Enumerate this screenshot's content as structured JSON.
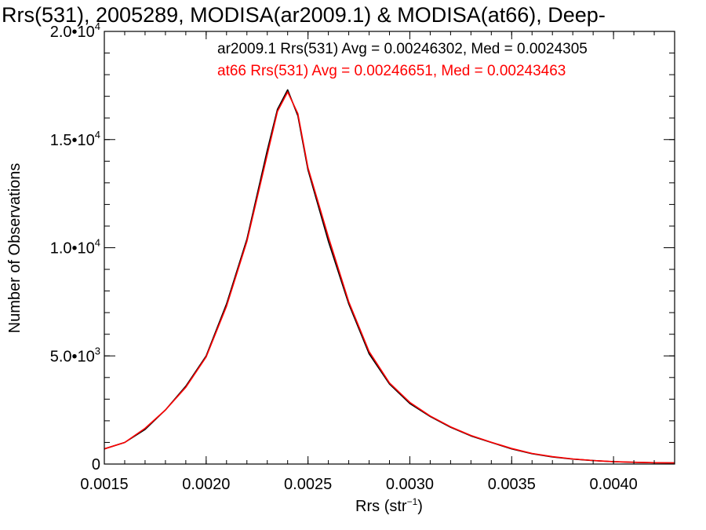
{
  "chart_data": {
    "type": "line",
    "title": "Rrs(531), 2005289, MODISA(ar2009.1) & MODISA(at66), Deep-",
    "xlabel": {
      "base": "Rrs (str",
      "sup": "−1",
      "tail": ")"
    },
    "ylabel": "Number of Observations",
    "xlim": [
      0.0015,
      0.0043
    ],
    "ylim": [
      0,
      20000
    ],
    "grid": false,
    "x_ticks": [
      {
        "value": 0.0015,
        "label": "0.0015"
      },
      {
        "value": 0.002,
        "label": "0.0020"
      },
      {
        "value": 0.0025,
        "label": "0.0025"
      },
      {
        "value": 0.003,
        "label": "0.0030"
      },
      {
        "value": 0.0035,
        "label": "0.0035"
      },
      {
        "value": 0.004,
        "label": "0.0040"
      }
    ],
    "y_ticks": [
      {
        "value": 0,
        "mant": "0",
        "exp": ""
      },
      {
        "value": 5000,
        "mant": "5.0•10",
        "exp": "3"
      },
      {
        "value": 10000,
        "mant": "1.0•10",
        "exp": "4"
      },
      {
        "value": 15000,
        "mant": "1.5•10",
        "exp": "4"
      },
      {
        "value": 20000,
        "mant": "2.0•10",
        "exp": "4"
      }
    ],
    "annotations": [
      {
        "text": "ar2009.1 Rrs(531) Avg = 0.00246302, Med = 0.0024305",
        "color": "#000000"
      },
      {
        "text": "at66 Rrs(531) Avg = 0.00246651, Med = 0.00243463",
        "color": "#ff0000"
      }
    ],
    "x": [
      0.0015,
      0.0016,
      0.0017,
      0.0018,
      0.0019,
      0.002,
      0.0021,
      0.0022,
      0.0023,
      0.00235,
      0.0024,
      0.00245,
      0.0025,
      0.0026,
      0.0027,
      0.0028,
      0.0029,
      0.003,
      0.0031,
      0.0032,
      0.0033,
      0.0034,
      0.0035,
      0.0036,
      0.0037,
      0.0038,
      0.0039,
      0.004,
      0.0041,
      0.0042,
      0.0043
    ],
    "series": [
      {
        "color": "#000000",
        "values": [
          700,
          1000,
          1600,
          2500,
          3600,
          5000,
          7400,
          10400,
          14500,
          16400,
          17300,
          16100,
          13600,
          10300,
          7400,
          5100,
          3700,
          2800,
          2200,
          1700,
          1300,
          1000,
          700,
          480,
          330,
          230,
          160,
          110,
          80,
          60,
          50
        ]
      },
      {
        "color": "#ff0000",
        "values": [
          700,
          1000,
          1650,
          2500,
          3550,
          4950,
          7300,
          10300,
          14300,
          16300,
          17200,
          16200,
          13700,
          10500,
          7500,
          5200,
          3750,
          2850,
          2220,
          1720,
          1320,
          1010,
          720,
          490,
          340,
          235,
          165,
          112,
          82,
          62,
          50
        ]
      }
    ]
  }
}
